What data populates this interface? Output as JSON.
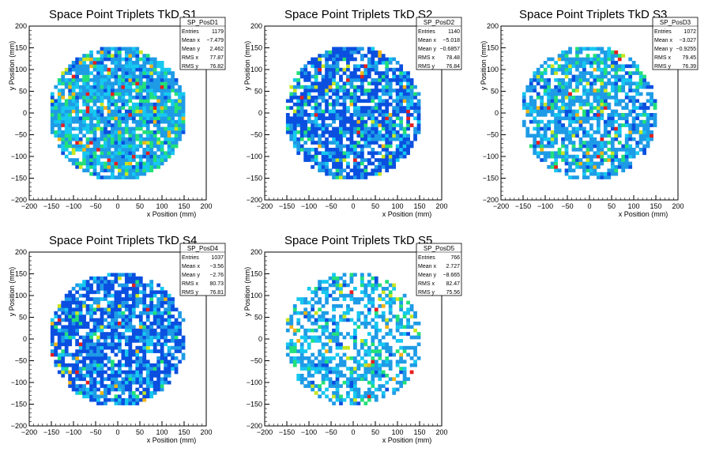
{
  "chart_data": [
    {
      "type": "heatmap",
      "title": "Space Point Triplets TkD S1",
      "xlabel": "x Position (mm)",
      "ylabel": "y Position (mm)",
      "xlim": [
        -200,
        200
      ],
      "ylim": [
        -200,
        200
      ],
      "xticks": [
        -200,
        -150,
        -100,
        -50,
        0,
        50,
        100,
        150,
        200
      ],
      "yticks": [
        -200,
        -150,
        -100,
        -50,
        0,
        50,
        100,
        150,
        200
      ],
      "stats": {
        "name": "SP_PosD1",
        "rows": [
          {
            "label": "Entries",
            "value": "1179"
          },
          {
            "label": "Mean x",
            "value": "−7.479"
          },
          {
            "label": "Mean y",
            "value": "2.462"
          },
          {
            "label": "RMS x",
            "value": "77.87"
          },
          {
            "label": "RMS y",
            "value": "76.82"
          }
        ]
      },
      "entries": 1179,
      "mean_x": -7.479,
      "mean_y": 2.462,
      "rms_x": 77.87,
      "rms_y": 76.82,
      "distribution": "disk of radius ~155 mm, bins 8 mm, mostly 1-2 counts",
      "palette": "light-blue/cyan/green dominant, few yellow/red"
    },
    {
      "type": "heatmap",
      "title": "Space Point Triplets TkD S2",
      "xlabel": "x Position (mm)",
      "ylabel": "y Position (mm)",
      "xlim": [
        -200,
        200
      ],
      "ylim": [
        -200,
        200
      ],
      "xticks": [
        -200,
        -150,
        -100,
        -50,
        0,
        50,
        100,
        150,
        200
      ],
      "yticks": [
        -200,
        -150,
        -100,
        -50,
        0,
        50,
        100,
        150,
        200
      ],
      "stats": {
        "name": "SP_PosD2",
        "rows": [
          {
            "label": "Entries",
            "value": "1140"
          },
          {
            "label": "Mean x",
            "value": "−5.018"
          },
          {
            "label": "Mean y",
            "value": "−0.6857"
          },
          {
            "label": "RMS x",
            "value": "78.48"
          },
          {
            "label": "RMS y",
            "value": "76.84"
          }
        ]
      },
      "entries": 1140,
      "mean_x": -5.018,
      "mean_y": -0.6857,
      "rms_x": 78.48,
      "rms_y": 76.84,
      "distribution": "disk of radius ~155 mm, bins 8 mm",
      "palette": "dark-blue dominant, some light blue/green"
    },
    {
      "type": "heatmap",
      "title": "Space Point Triplets TkD S3",
      "xlabel": "x Position (mm)",
      "ylabel": "y Position (mm)",
      "xlim": [
        -200,
        200
      ],
      "ylim": [
        -200,
        200
      ],
      "xticks": [
        -200,
        -150,
        -100,
        -50,
        0,
        50,
        100,
        150,
        200
      ],
      "yticks": [
        -200,
        -150,
        -100,
        -50,
        0,
        50,
        100,
        150,
        200
      ],
      "stats": {
        "name": "SP_PosD3",
        "rows": [
          {
            "label": "Entries",
            "value": "1072"
          },
          {
            "label": "Mean x",
            "value": "−3.027"
          },
          {
            "label": "Mean y",
            "value": "−0.9255"
          },
          {
            "label": "RMS x",
            "value": "79.45"
          },
          {
            "label": "RMS y",
            "value": "76.39"
          }
        ]
      },
      "entries": 1072,
      "mean_x": -3.027,
      "mean_y": -0.9255,
      "rms_x": 79.45,
      "rms_y": 76.39,
      "distribution": "disk of radius ~155 mm, bins 8 mm",
      "palette": "light-blue dominant, some green/yellow, few red"
    },
    {
      "type": "heatmap",
      "title": "Space Point Triplets TkD S4",
      "xlabel": "x Position (mm)",
      "ylabel": "y Position (mm)",
      "xlim": [
        -200,
        200
      ],
      "ylim": [
        -200,
        200
      ],
      "xticks": [
        -200,
        -150,
        -100,
        -50,
        0,
        50,
        100,
        150,
        200
      ],
      "yticks": [
        -200,
        -150,
        -100,
        -50,
        0,
        50,
        100,
        150,
        200
      ],
      "stats": {
        "name": "SP_PosD4",
        "rows": [
          {
            "label": "Entries",
            "value": "1037"
          },
          {
            "label": "Mean x",
            "value": "−3.56"
          },
          {
            "label": "Mean y",
            "value": "−2.76"
          },
          {
            "label": "RMS x",
            "value": "80.73"
          },
          {
            "label": "RMS y",
            "value": "76.81"
          }
        ]
      },
      "entries": 1037,
      "mean_x": -3.56,
      "mean_y": -2.76,
      "rms_x": 80.73,
      "rms_y": 76.81,
      "distribution": "disk of radius ~155 mm, bins 8 mm",
      "palette": "dark-blue dominant, some light blue/cyan"
    },
    {
      "type": "heatmap",
      "title": "Space Point Triplets TkD S5",
      "xlabel": "x Position (mm)",
      "ylabel": "y Position (mm)",
      "xlim": [
        -200,
        200
      ],
      "ylim": [
        -200,
        200
      ],
      "xticks": [
        -200,
        -150,
        -100,
        -50,
        0,
        50,
        100,
        150,
        200
      ],
      "yticks": [
        -200,
        -150,
        -100,
        -50,
        0,
        50,
        100,
        150,
        200
      ],
      "stats": {
        "name": "SP_PosD5",
        "rows": [
          {
            "label": "Entries",
            "value": "766"
          },
          {
            "label": "Mean x",
            "value": "2.727"
          },
          {
            "label": "Mean y",
            "value": "−8.665"
          },
          {
            "label": "RMS x",
            "value": "82.47"
          },
          {
            "label": "RMS y",
            "value": "75.56"
          }
        ]
      },
      "entries": 766,
      "mean_x": 2.727,
      "mean_y": -8.665,
      "rms_x": 82.47,
      "rms_y": 75.56,
      "distribution": "disk of radius ~155 mm, sparse, bins 8 mm",
      "palette": "light-blue/cyan dominant, green, few yellow/red"
    }
  ],
  "colors": {
    "bin_levels": [
      "#0a4fe0",
      "#1e9be6",
      "#16c8f0",
      "#22e07a",
      "#c8e61e",
      "#f0b414",
      "#e61e1e"
    ],
    "axis": "#000000",
    "background": "#ffffff"
  }
}
